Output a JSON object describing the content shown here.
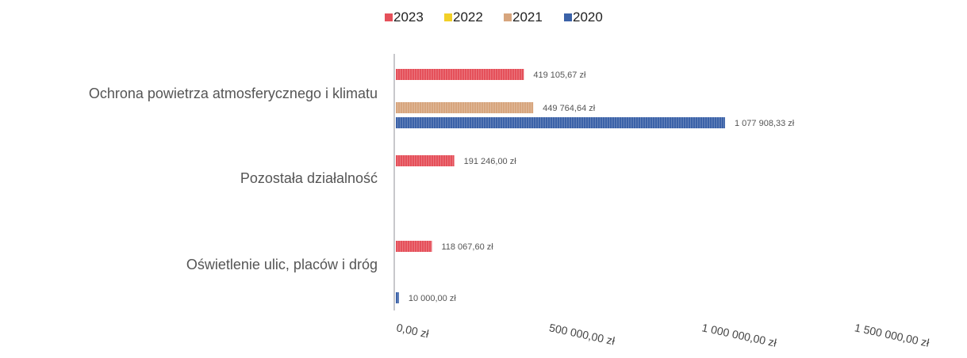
{
  "chart_data": {
    "type": "bar",
    "orientation": "horizontal",
    "title": "",
    "legend_position": "top",
    "categories": [
      "Ochrona powietrza atmosferycznego i klimatu",
      "Pozostała działalność",
      "Oświetlenie ulic, placów i dróg"
    ],
    "series": [
      {
        "name": "2023",
        "color": "#e5505a",
        "values": [
          419105.67,
          191246.0,
          118067.6
        ],
        "labels": [
          "419 105,67 zł",
          "191 246,00 zł",
          "118 067,60 zł"
        ]
      },
      {
        "name": "2022",
        "color": "#f2d027",
        "values": [
          null,
          null,
          null
        ],
        "labels": [
          null,
          null,
          null
        ]
      },
      {
        "name": "2021",
        "color": "#d7a57d",
        "values": [
          449764.64,
          null,
          null
        ],
        "labels": [
          "449 764,64 zł",
          null,
          null
        ]
      },
      {
        "name": "2020",
        "color": "#3b62a8",
        "values": [
          1077908.33,
          null,
          10000.0
        ],
        "labels": [
          "1 077 908,33 zł",
          null,
          "10 000,00 zł"
        ]
      }
    ],
    "x_ticks": [
      0,
      500000,
      1000000,
      1500000
    ],
    "x_tick_labels": [
      "0,00 zł",
      "500 000,00 zł",
      "1 000 000,00 zł",
      "1 500 000,00 zł"
    ],
    "xlim": [
      0,
      1500000
    ],
    "grid": false
  }
}
